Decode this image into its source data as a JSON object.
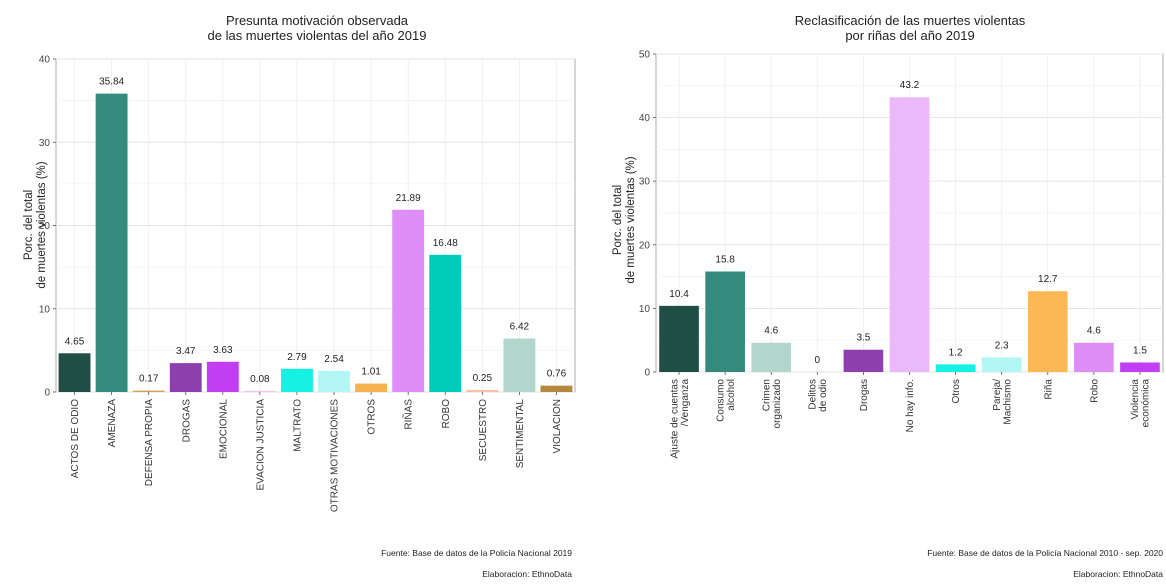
{
  "chart_data": [
    {
      "type": "bar",
      "title": [
        "Presunta motivación observada",
        "de las muertes violentas del año 2019"
      ],
      "ylabel": [
        "Porc. del total",
        "de muertes violentas (%)"
      ],
      "xlabel": "",
      "ylim": [
        0,
        40
      ],
      "yticks": [
        0,
        10,
        20,
        30,
        40
      ],
      "grid": true,
      "categories": [
        [
          "ACTOS DE ODIO"
        ],
        [
          "AMENAZA"
        ],
        [
          "DEFENSA PROPIA"
        ],
        [
          "DROGAS"
        ],
        [
          "EMOCIONAL"
        ],
        [
          "EVACION JUSTICIA"
        ],
        [
          "MALTRATO"
        ],
        [
          "OTRAS MOTIVACIONES"
        ],
        [
          "OTROS"
        ],
        [
          "RIÑAS"
        ],
        [
          "ROBO"
        ],
        [
          "SECUESTRO"
        ],
        [
          "SENTIMENTAL"
        ],
        [
          "VIOLACION"
        ]
      ],
      "values": [
        4.65,
        35.84,
        0.17,
        3.47,
        3.63,
        0.08,
        2.79,
        2.54,
        1.01,
        21.89,
        16.48,
        0.25,
        6.42,
        0.76
      ],
      "labels": [
        "4.65",
        "35.84",
        "0.17",
        "3.47",
        "3.63",
        "0.08",
        "2.79",
        "2.54",
        "1.01",
        "21.89",
        "16.48",
        "0.25",
        "6.42",
        "0.76"
      ],
      "colors": [
        "#1f4e45",
        "#348b7d",
        "#d4a35a",
        "#8e3fae",
        "#c13ef2",
        "#f2c3f5",
        "#16f1e4",
        "#b2f7f4",
        "#f6b24c",
        "#dd8df5",
        "#00cdb9",
        "#f6c2a8",
        "#b2d5cc",
        "#b4893d"
      ],
      "source": "Fuente: Base de datos de la Policía Nacional 2019",
      "credit": "Elaboracion: EthnoData"
    },
    {
      "type": "bar",
      "title": [
        "Reclasificación de las muertes violentas",
        "por riñas del año 2019"
      ],
      "ylabel": [
        "Porc. del total",
        "de muertes violentas (%)"
      ],
      "xlabel": "",
      "ylim": [
        0,
        50
      ],
      "yticks": [
        0,
        10,
        20,
        30,
        40,
        50
      ],
      "grid": true,
      "categories": [
        [
          "Ajuste de cuentas",
          "/Venganza"
        ],
        [
          "Consumo",
          "alcohol"
        ],
        [
          "Crimen",
          "organizado"
        ],
        [
          "Delitos",
          "de odio"
        ],
        [
          "Drogas"
        ],
        [
          "No hay info."
        ],
        [
          "Otros"
        ],
        [
          "Pareja/",
          "Machismo"
        ],
        [
          "Riña"
        ],
        [
          "Robo"
        ],
        [
          "Violencia",
          "económica"
        ]
      ],
      "values": [
        10.4,
        15.8,
        4.6,
        0,
        3.5,
        43.2,
        1.2,
        2.3,
        12.7,
        4.6,
        1.5
      ],
      "labels": [
        "10.4",
        "15.8",
        "4.6",
        "0",
        "3.5",
        "43.2",
        "1.2",
        "2.3",
        "12.7",
        "4.6",
        "1.5"
      ],
      "colors": [
        "#1f4e45",
        "#348b7d",
        "#b2d5cc",
        "#cccccc",
        "#8e3fae",
        "#ebb9f9",
        "#16f1e4",
        "#b2f7f4",
        "#fcb854",
        "#dd8df5",
        "#c13ef2"
      ],
      "source": "Fuente: Base de datos de la Policía Nacional 2010 - sep. 2020",
      "credit": "Elaboracion: EthnoData"
    }
  ]
}
